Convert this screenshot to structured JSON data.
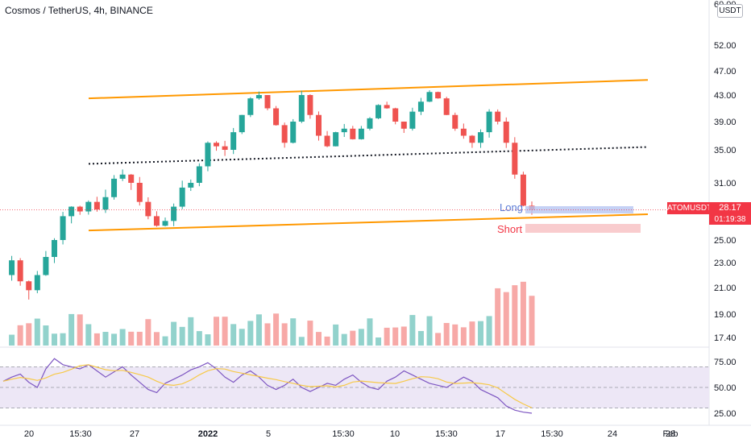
{
  "header": {
    "symbol_title": "Cosmos / TetherUS, 4h, BINANCE",
    "currency_button": "USDT"
  },
  "price_marker": {
    "symbol": "ATOMUSDT",
    "price": "28.17",
    "countdown": "01:19:38"
  },
  "position_tool": {
    "long_label": "Long",
    "short_label": "Short"
  },
  "colors": {
    "up": "#26a69a",
    "down": "#ef5350",
    "channel": "#ff9800",
    "midline": "#131722",
    "rsi_line": "#7e57c2",
    "rsi_ma": "#f7c948",
    "rsi_band": "#ede7f6"
  },
  "chart_data": {
    "type": "candlestick",
    "price_axis": {
      "ticks": [
        52.0,
        47.0,
        43.0,
        39.0,
        35.0,
        31.0,
        25.0,
        23.0,
        21.0,
        19.0,
        17.4
      ],
      "top_label": "60.00"
    },
    "rsi_axis": {
      "ticks": [
        75.0,
        50.0,
        25.0
      ],
      "band": [
        30,
        70
      ]
    },
    "x_labels": [
      "20",
      "15:30",
      "27",
      "2022",
      "5",
      "15:30",
      "10",
      "15:30",
      "17",
      "15:30",
      "24",
      "28",
      "Feb"
    ],
    "last_price": 28.17,
    "channel": {
      "upper": {
        "start": 42.5,
        "end": 45.5
      },
      "lower": {
        "start": 26.0,
        "end": 27.7
      },
      "mid": {
        "start": 33.3,
        "end": 35.4
      }
    },
    "price_path": [
      22.0,
      23.2,
      21.5,
      20.8,
      22.0,
      23.5,
      25.0,
      27.5,
      28.5,
      28.0,
      29.0,
      28.2,
      29.5,
      31.5,
      32.0,
      31.0,
      29.0,
      27.5,
      26.5,
      27.0,
      28.5,
      30.5,
      31.0,
      33.0,
      36.0,
      35.5,
      35.0,
      37.5,
      40.0,
      42.5,
      43.0,
      41.0,
      38.5,
      36.0,
      39.0,
      43.0,
      40.0,
      37.0,
      35.5,
      37.5,
      38.0,
      36.5,
      38.0,
      39.5,
      41.5,
      41.0,
      39.0,
      38.0,
      40.5,
      42.0,
      43.5,
      42.5,
      40.0,
      38.0,
      37.0,
      36.0,
      37.5,
      40.5,
      39.0,
      36.0,
      32.0,
      28.6,
      28.17
    ],
    "rsi_path": [
      56,
      60,
      63,
      55,
      50,
      68,
      78,
      72,
      70,
      68,
      72,
      66,
      60,
      65,
      70,
      62,
      55,
      48,
      45,
      54,
      58,
      62,
      67,
      70,
      74,
      68,
      60,
      55,
      62,
      66,
      60,
      52,
      48,
      52,
      58,
      50,
      46,
      50,
      54,
      52,
      58,
      62,
      55,
      50,
      48,
      56,
      60,
      66,
      62,
      58,
      54,
      52,
      50,
      55,
      60,
      56,
      48,
      44,
      40,
      32,
      28,
      26,
      25
    ]
  }
}
